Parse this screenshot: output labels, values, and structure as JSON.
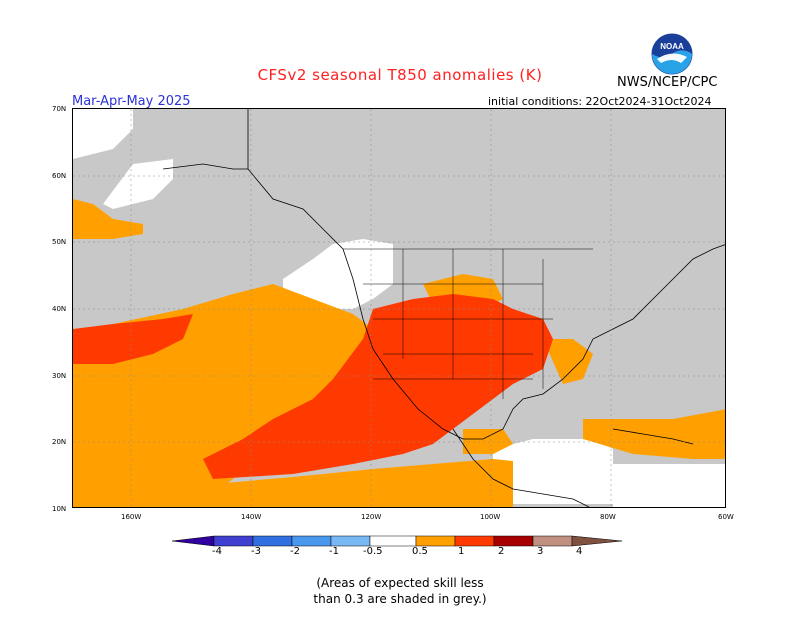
{
  "header": {
    "title": "CFSv2 seasonal T850 anomalies (K)",
    "period": "Mar-Apr-May 2025",
    "initial_conditions": "initial conditions: 22Oct2024-31Oct2024",
    "agency": "NWS/NCEP/CPC",
    "logo_text": "NOAA"
  },
  "map": {
    "lat_labels": [
      "70N",
      "60N",
      "50N",
      "40N",
      "30N",
      "20N",
      "10N"
    ],
    "lon_labels": [
      "160W",
      "140W",
      "120W",
      "100W",
      "80W",
      "60W"
    ],
    "colors": {
      "land_grey": "#c8c8c8",
      "anom_0_5_1": "#ffa000",
      "anom_1_2": "#ff3a00",
      "anom_2_3": "#a80000",
      "no_skill": "#ffffff"
    }
  },
  "colorbar": {
    "labels": [
      "-4",
      "-3",
      "-2",
      "-1",
      "-0.5",
      "0.5",
      "1",
      "2",
      "3",
      "4"
    ],
    "colors": [
      "#3000a0",
      "#4040d0",
      "#3070e0",
      "#4a98ee",
      "#78b8f5",
      "#ffffff",
      "#ffa000",
      "#ff3a00",
      "#a80000",
      "#c09080",
      "#805040"
    ]
  },
  "footnote": {
    "line1": "(Areas of expected skill less",
    "line2": "than 0.3 are shaded in grey.)"
  }
}
